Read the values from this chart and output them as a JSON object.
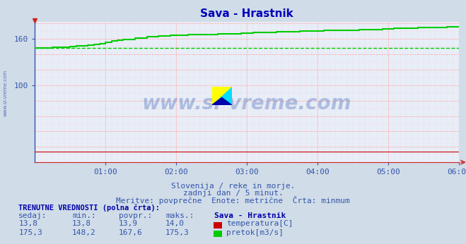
{
  "title": "Sava - Hrastnik",
  "bg_color": "#d0dce8",
  "plot_bg_color": "#e8eef8",
  "x_min": 0,
  "x_max": 72,
  "y_min": 0,
  "y_max": 182,
  "y_ticks": [
    100,
    160
  ],
  "x_tick_labels": [
    "01:00",
    "02:00",
    "03:00",
    "04:00",
    "05:00",
    "06:00"
  ],
  "flow_color": "#00cc00",
  "temp_color": "#cc0000",
  "min_flow": 148.2,
  "min_temp": 13.8,
  "watermark_text": "www.si-vreme.com",
  "subtitle1": "Slovenija / reke in morje.",
  "subtitle2": "zadnji dan / 5 minut.",
  "subtitle3": "Meritve: povprečne  Enote: metrične  Črta: minmum",
  "table_header": "TRENUTNE VREDNOSTI (polna črta):",
  "col_headers": [
    "sedaj:",
    "min.:",
    "povpr.:",
    "maks.:",
    "Sava - Hrastnik"
  ],
  "row1_vals": [
    "13,8",
    "13,8",
    "13,9",
    "14,0"
  ],
  "row2_vals": [
    "175,3",
    "148,2",
    "167,6",
    "175,3"
  ],
  "label1": "temperatura[C]",
  "label2": "pretok[m3/s]",
  "flow_x": [
    0,
    1,
    2,
    3,
    4,
    5,
    6,
    7,
    8,
    9,
    10,
    11,
    12,
    13,
    14,
    15,
    16,
    17,
    18,
    19,
    20,
    21,
    22,
    23,
    24,
    25,
    26,
    27,
    28,
    29,
    30,
    31,
    32,
    33,
    34,
    35,
    36,
    37,
    38,
    39,
    40,
    41,
    42,
    43,
    44,
    45,
    46,
    47,
    48,
    49,
    50,
    51,
    52,
    53,
    54,
    55,
    56,
    57,
    58,
    59,
    60,
    61,
    62,
    63,
    64,
    65,
    66,
    67,
    68,
    69,
    70,
    71,
    72
  ],
  "flow_y": [
    148.2,
    148.3,
    148.5,
    148.8,
    149.0,
    149.4,
    150.0,
    151.0,
    151.2,
    152.0,
    152.5,
    154.0,
    156.0,
    157.5,
    158.5,
    159.0,
    159.5,
    161.0,
    161.5,
    162.5,
    163.0,
    163.5,
    164.0,
    164.5,
    164.5,
    165.0,
    165.5,
    165.5,
    165.5,
    166.0,
    166.0,
    166.5,
    166.5,
    167.0,
    167.0,
    167.5,
    167.5,
    168.0,
    168.0,
    168.5,
    168.5,
    169.0,
    169.0,
    169.5,
    169.5,
    170.0,
    170.0,
    170.5,
    170.5,
    171.0,
    171.0,
    171.0,
    171.5,
    171.5,
    171.5,
    172.0,
    172.0,
    172.5,
    172.5,
    173.0,
    173.0,
    173.5,
    173.5,
    174.0,
    174.0,
    174.5,
    174.5,
    174.5,
    175.0,
    175.0,
    175.3,
    175.3,
    175.3
  ]
}
